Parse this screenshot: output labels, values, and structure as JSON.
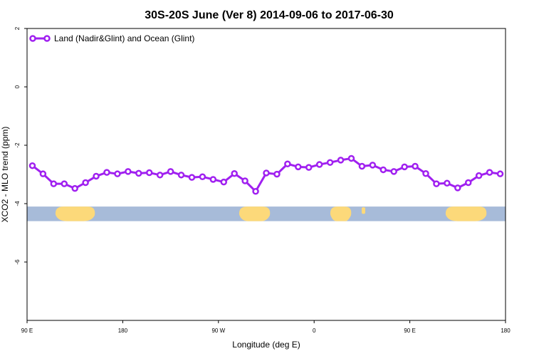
{
  "chart_data": {
    "type": "line",
    "title": "30S-20S June (Ver 8)   2014-09-06 to 2017-06-30",
    "xlabel": "Longitude (deg E)",
    "ylabel": "XCO2 - MLO trend (ppm)",
    "xlim": [
      90,
      540
    ],
    "ylim": [
      -8,
      2
    ],
    "x_ticks": [
      {
        "value": 90,
        "label": "90 E"
      },
      {
        "value": 180,
        "label": "180"
      },
      {
        "value": 270,
        "label": "90 W"
      },
      {
        "value": 360,
        "label": "0"
      },
      {
        "value": 450,
        "label": "90 E"
      },
      {
        "value": 540,
        "label": "180"
      }
    ],
    "y_ticks": [
      {
        "value": 2,
        "label": "2"
      },
      {
        "value": 0,
        "label": "0"
      },
      {
        "value": -2,
        "label": "-2"
      },
      {
        "value": -4,
        "label": "-4"
      },
      {
        "value": -6,
        "label": "-6"
      }
    ],
    "legend_position": "top-left",
    "grid": false,
    "map_strip": {
      "y_top": -4.1,
      "y_bottom": -4.6,
      "ocean_color": "#a7bbd9",
      "land_color": "#fcd97a"
    },
    "series": [
      {
        "name": "Land (Nadir&Glint) and Ocean (Glint)",
        "color": "#a020f0",
        "x": [
          95,
          105,
          115,
          125,
          135,
          145,
          155,
          165,
          175,
          185,
          195,
          205,
          215,
          225,
          235,
          245,
          255,
          265,
          275,
          285,
          295,
          305,
          315,
          325,
          335,
          345,
          355,
          365,
          375,
          385,
          395,
          405,
          415,
          425,
          435,
          445,
          455,
          465,
          475,
          485,
          495,
          505,
          515,
          525,
          535
        ],
        "values": [
          -2.7,
          -2.98,
          -3.32,
          -3.32,
          -3.48,
          -3.28,
          -3.06,
          -2.93,
          -2.98,
          -2.9,
          -2.96,
          -2.94,
          -3.02,
          -2.9,
          -3.02,
          -3.1,
          -3.08,
          -3.17,
          -3.26,
          -2.97,
          -3.22,
          -3.58,
          -2.95,
          -2.99,
          -2.64,
          -2.74,
          -2.76,
          -2.66,
          -2.59,
          -2.51,
          -2.45,
          -2.72,
          -2.68,
          -2.84,
          -2.9,
          -2.74,
          -2.72,
          -2.97,
          -3.32,
          -3.3,
          -3.46,
          -3.28,
          -3.04,
          -2.93,
          -2.98
        ]
      }
    ]
  }
}
